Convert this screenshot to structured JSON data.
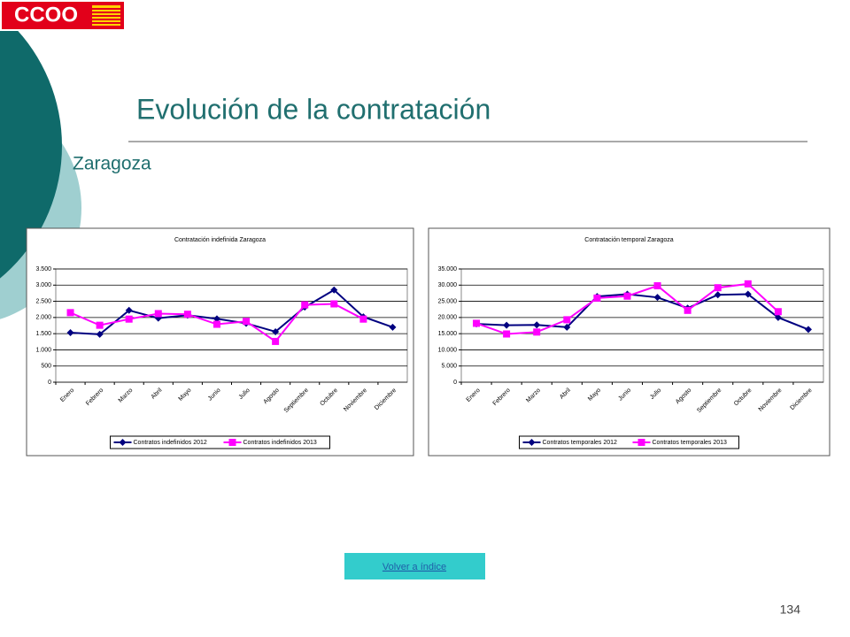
{
  "logo": "CCOO",
  "title": "Evolución de la contratación",
  "subtitle": "Zaragoza",
  "button": "Volver a índice",
  "page_number": "134",
  "chart_data": [
    {
      "type": "line",
      "title": "Contratación indefinida Zaragoza",
      "categories": [
        "Enero",
        "Febrero",
        "Marzo",
        "Abril",
        "Mayo",
        "Junio",
        "Julio",
        "Agosto",
        "Septiembre",
        "Octubre",
        "Noviembre",
        "Diciembre"
      ],
      "series": [
        {
          "name": "Contratos indefinidos 2012",
          "color": "#000080",
          "marker": "diamond",
          "values": [
            1530,
            1480,
            2220,
            1980,
            2070,
            1960,
            1820,
            1560,
            2320,
            2850,
            2020,
            1700
          ]
        },
        {
          "name": "Contratos indefinidos 2013",
          "color": "#ff00ff",
          "marker": "square",
          "values": [
            2150,
            1760,
            1950,
            2120,
            2100,
            1790,
            1880,
            1260,
            2390,
            2420,
            1950,
            null
          ]
        }
      ],
      "ylim": [
        0,
        3500
      ],
      "yticks": [
        0,
        500,
        {
          "value": 1000,
          "label": "1.000"
        },
        {
          "value": 1500,
          "label": "1.500"
        },
        {
          "value": 2000,
          "label": "2.000"
        },
        {
          "value": 2500,
          "label": "2.500"
        },
        {
          "value": 3000,
          "label": "3.000"
        },
        {
          "value": 3500,
          "label": "3.500"
        }
      ],
      "grid": true,
      "legend": "bottom"
    },
    {
      "type": "line",
      "title": "Contratación temporal Zaragoza",
      "categories": [
        "Enero",
        "Febrero",
        "Marzo",
        "Abril",
        "Mayo",
        "Junio",
        "Julio",
        "Agosto",
        "Septiembre",
        "Octubre",
        "Noviembre",
        "Diciembre"
      ],
      "series": [
        {
          "name": "Contratos temporales 2012",
          "color": "#000080",
          "marker": "diamond",
          "values": [
            18000,
            17600,
            17700,
            17000,
            26500,
            27200,
            26200,
            22900,
            27000,
            27200,
            20000,
            16300
          ]
        },
        {
          "name": "Contratos temporales 2013",
          "color": "#ff00ff",
          "marker": "square",
          "values": [
            18200,
            14900,
            15500,
            19300,
            26000,
            26600,
            29800,
            22200,
            29200,
            30400,
            21800,
            null
          ]
        }
      ],
      "ylim": [
        0,
        35000
      ],
      "yticks": [
        0,
        {
          "value": 5000,
          "label": "5.000"
        },
        {
          "value": 10000,
          "label": "10.000"
        },
        {
          "value": 15000,
          "label": "15.000"
        },
        {
          "value": 20000,
          "label": "20.000"
        },
        {
          "value": 25000,
          "label": "25.000"
        },
        {
          "value": 30000,
          "label": "30.000"
        },
        {
          "value": 35000,
          "label": "35.000"
        }
      ],
      "grid": true,
      "legend": "bottom"
    }
  ]
}
